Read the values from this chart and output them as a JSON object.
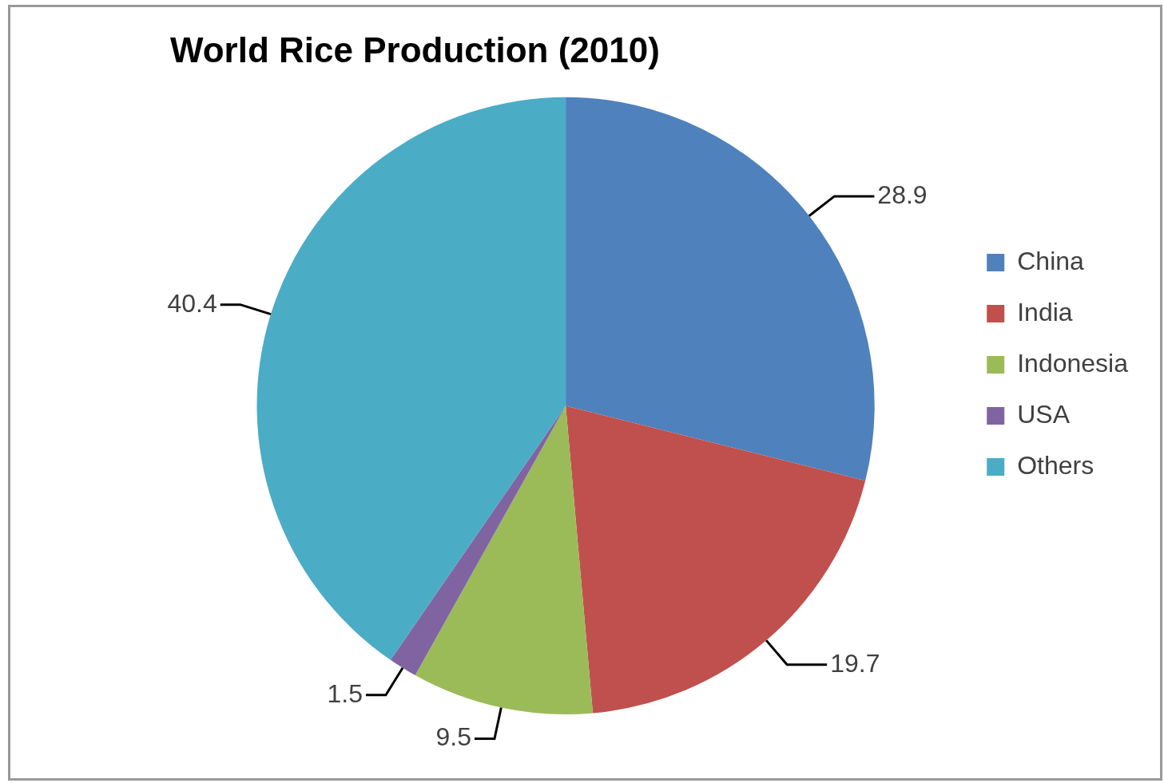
{
  "chart_data": {
    "type": "pie",
    "title": "World Rice Production (2010)",
    "categories": [
      "China",
      "India",
      "Indonesia",
      "USA",
      "Others"
    ],
    "values": [
      28.9,
      19.7,
      9.5,
      1.5,
      40.4
    ],
    "colors": [
      "#4f81bd",
      "#c0504d",
      "#9bbb59",
      "#8064a2",
      "#4bacc6"
    ],
    "data_labels": true,
    "legend": "right"
  }
}
